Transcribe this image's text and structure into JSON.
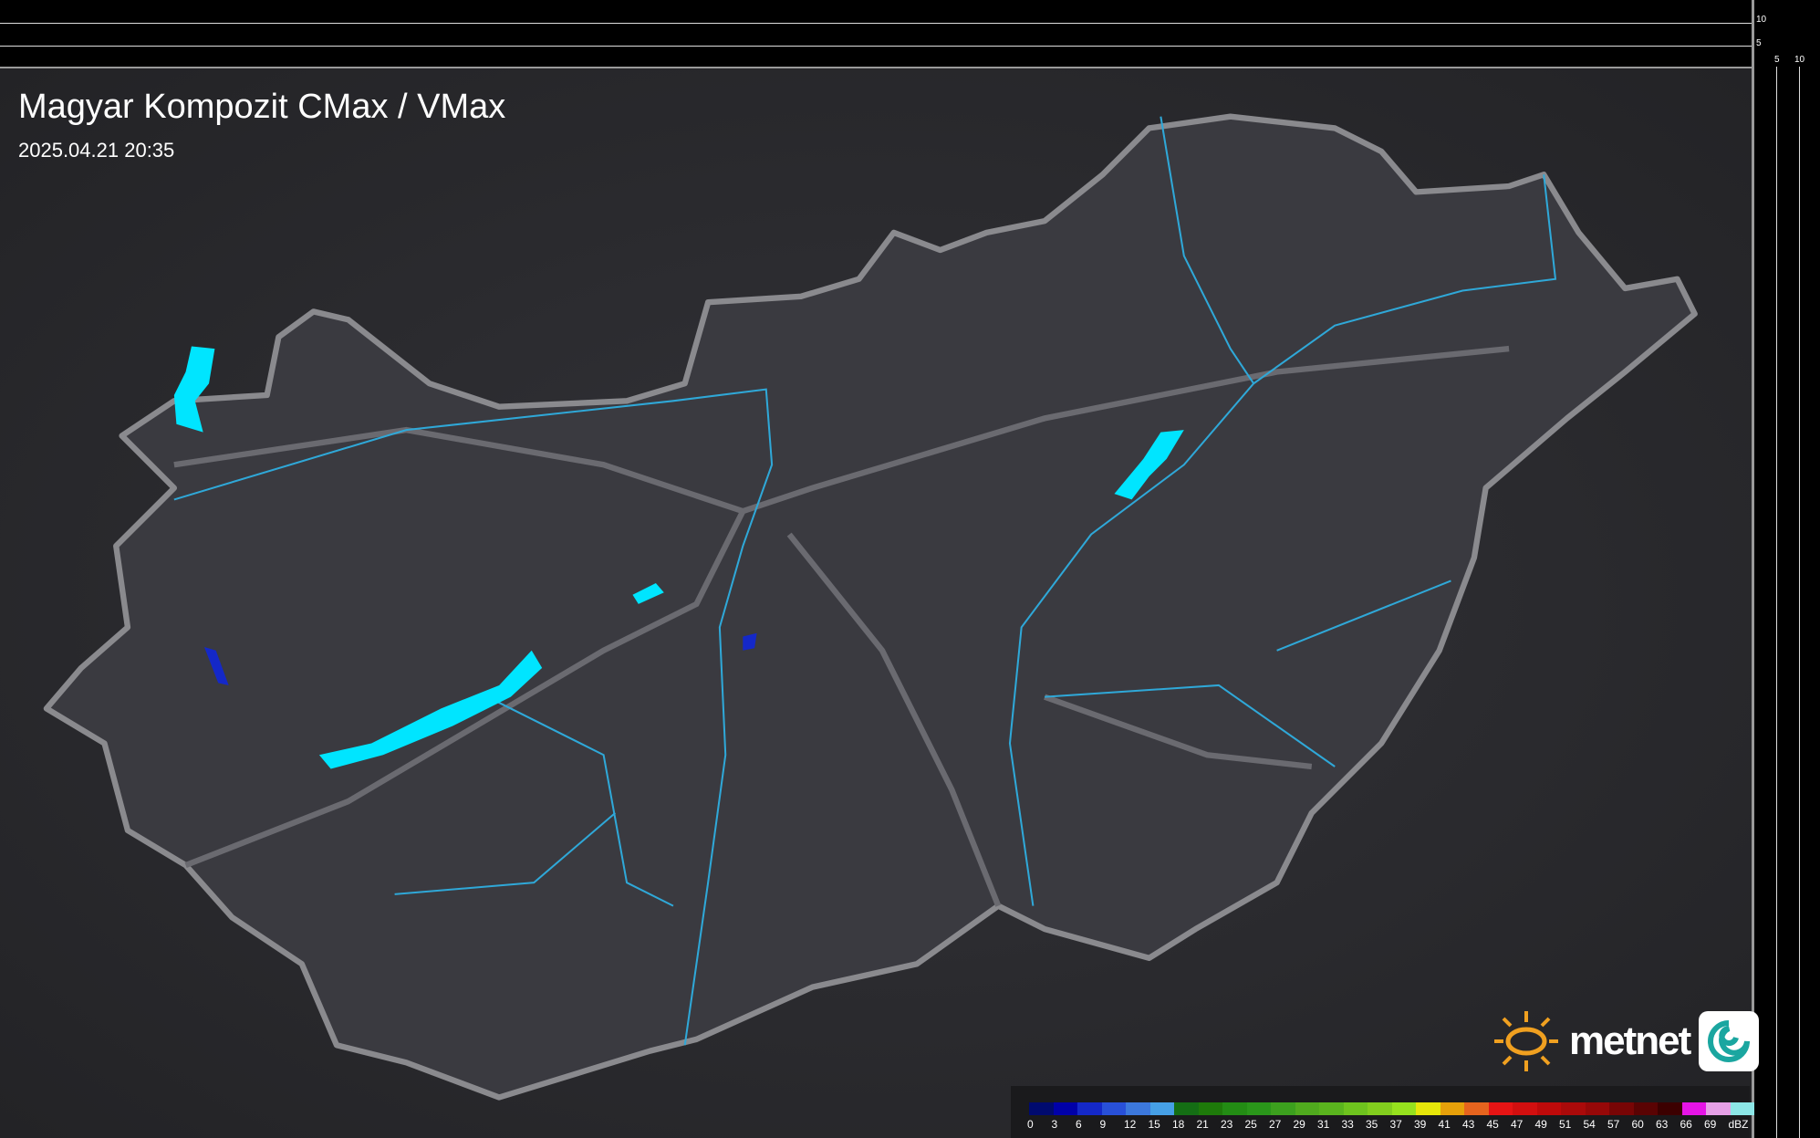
{
  "title": "Magyar Kompozit CMax / VMax",
  "timestamp": "2025.04.21 20:35",
  "logo": "metnet",
  "top_scale_ticks": [
    "10",
    "5"
  ],
  "right_scale_ticks": [
    "5",
    "10"
  ],
  "legend": {
    "unit": "dBZ",
    "labels": [
      "0",
      "3",
      "6",
      "9",
      "12",
      "15",
      "18",
      "21",
      "23",
      "25",
      "27",
      "29",
      "31",
      "33",
      "35",
      "37",
      "39",
      "41",
      "43",
      "45",
      "47",
      "49",
      "51",
      "54",
      "57",
      "60",
      "63",
      "66",
      "69"
    ],
    "colors": [
      "#000a6e",
      "#0000a8",
      "#1428c8",
      "#2850d8",
      "#3c78dc",
      "#46a0e6",
      "#146e14",
      "#1e7a0a",
      "#238c14",
      "#2a961a",
      "#3ca01e",
      "#50aa1e",
      "#5ab41e",
      "#6ec31e",
      "#82cd1e",
      "#96e11e",
      "#e6e60a",
      "#e6a00a",
      "#e6641e",
      "#e61414",
      "#d20f0f",
      "#be0a0a",
      "#aa0a0a",
      "#960808",
      "#780505",
      "#5a0303",
      "#3c0000",
      "#e614e6",
      "#e6a0e6",
      "#8ce6e6"
    ]
  },
  "colors": {
    "border": "#8a8a8e",
    "river": "#2fa8d8",
    "precip_light": "#00e5ff",
    "precip_dark": "#1428c8"
  }
}
